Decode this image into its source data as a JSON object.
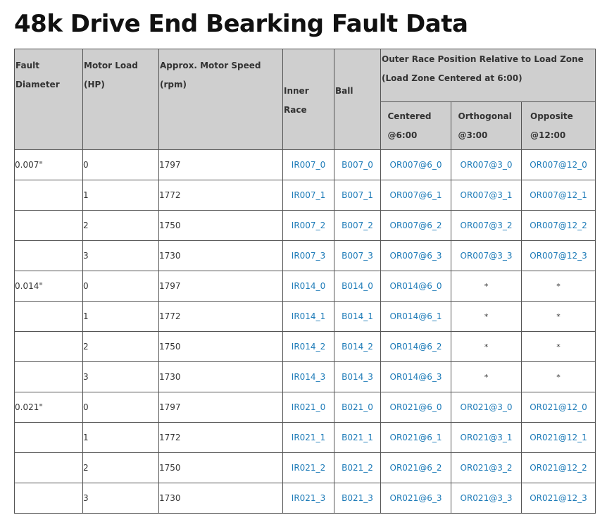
{
  "page": {
    "title": "48k Drive End Bearking Fault Data"
  },
  "table": {
    "headers": {
      "fault_diameter": "Fault Diameter",
      "motor_load": "Motor Load (HP)",
      "motor_speed": "Approx. Motor Speed (rpm)",
      "inner_race": "Inner Race",
      "ball": "Ball",
      "outer_race_group": "Outer Race Position Relative to Load Zone (Load Zone Centered at 6:00)",
      "centered": "Centered @6:00",
      "orthogonal": "Orthogonal @3:00",
      "opposite": "Opposite @12:00"
    },
    "link_color": "#1d7bb8",
    "rows": [
      {
        "diameter": "0.007\"",
        "load": "0",
        "speed": "1797",
        "inner": "IR007_0",
        "ball": "B007_0",
        "centered": "OR007@6_0",
        "orthogonal": "OR007@3_0",
        "opposite": "OR007@12_0"
      },
      {
        "diameter": "",
        "load": "1",
        "speed": "1772",
        "inner": "IR007_1",
        "ball": "B007_1",
        "centered": "OR007@6_1",
        "orthogonal": "OR007@3_1",
        "opposite": "OR007@12_1"
      },
      {
        "diameter": "",
        "load": "2",
        "speed": "1750",
        "inner": "IR007_2",
        "ball": "B007_2",
        "centered": "OR007@6_2",
        "orthogonal": "OR007@3_2",
        "opposite": "OR007@12_2"
      },
      {
        "diameter": "",
        "load": "3",
        "speed": "1730",
        "inner": "IR007_3",
        "ball": "B007_3",
        "centered": "OR007@6_3",
        "orthogonal": "OR007@3_3",
        "opposite": "OR007@12_3"
      },
      {
        "diameter": "0.014\"",
        "load": "0",
        "speed": "1797",
        "inner": "IR014_0",
        "ball": "B014_0",
        "centered": "OR014@6_0",
        "orthogonal": "*",
        "opposite": "*"
      },
      {
        "diameter": "",
        "load": "1",
        "speed": "1772",
        "inner": "IR014_1",
        "ball": "B014_1",
        "centered": "OR014@6_1",
        "orthogonal": "*",
        "opposite": "*"
      },
      {
        "diameter": "",
        "load": "2",
        "speed": "1750",
        "inner": "IR014_2",
        "ball": "B014_2",
        "centered": "OR014@6_2",
        "orthogonal": "*",
        "opposite": "*"
      },
      {
        "diameter": "",
        "load": "3",
        "speed": "1730",
        "inner": "IR014_3",
        "ball": "B014_3",
        "centered": "OR014@6_3",
        "orthogonal": "*",
        "opposite": "*"
      },
      {
        "diameter": "0.021\"",
        "load": "0",
        "speed": "1797",
        "inner": "IR021_0",
        "ball": "B021_0",
        "centered": "OR021@6_0",
        "orthogonal": "OR021@3_0",
        "opposite": "OR021@12_0"
      },
      {
        "diameter": "",
        "load": "1",
        "speed": "1772",
        "inner": "IR021_1",
        "ball": "B021_1",
        "centered": "OR021@6_1",
        "orthogonal": "OR021@3_1",
        "opposite": "OR021@12_1"
      },
      {
        "diameter": "",
        "load": "2",
        "speed": "1750",
        "inner": "IR021_2",
        "ball": "B021_2",
        "centered": "OR021@6_2",
        "orthogonal": "OR021@3_2",
        "opposite": "OR021@12_2"
      },
      {
        "diameter": "",
        "load": "3",
        "speed": "1730",
        "inner": "IR021_3",
        "ball": "B021_3",
        "centered": "OR021@6_3",
        "orthogonal": "OR021@3_3",
        "opposite": "OR021@12_3"
      }
    ]
  }
}
